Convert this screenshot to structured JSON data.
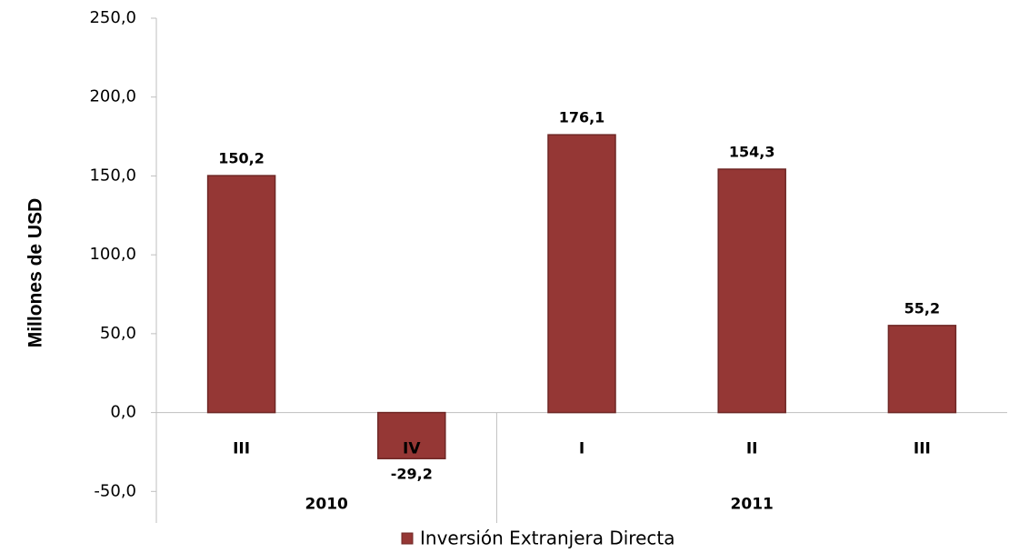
{
  "chart_data": {
    "type": "bar",
    "y_label": "Millones de USD",
    "categories": [
      "III",
      "IV",
      "I",
      "II",
      "III"
    ],
    "groups": [
      {
        "name": "2010",
        "size": 2
      },
      {
        "name": "2011",
        "size": 3
      }
    ],
    "series": [
      {
        "name": "Inversión Extranjera Directa",
        "color": "#953735",
        "values": [
          150.2,
          -29.2,
          176.1,
          154.3,
          55.2
        ],
        "value_labels": [
          "150,2",
          "-29,2",
          "176,1",
          "154,3",
          "55,2"
        ]
      }
    ],
    "ylim": [
      -70,
      250
    ],
    "yticks": [
      {
        "value": -50,
        "label": "-50,0"
      },
      {
        "value": 0,
        "label": "0,0"
      },
      {
        "value": 50,
        "label": "50,0"
      },
      {
        "value": 100,
        "label": "100,0"
      },
      {
        "value": 150,
        "label": "150,0"
      },
      {
        "value": 200,
        "label": "200,0"
      },
      {
        "value": 250,
        "label": "250,0"
      }
    ],
    "grid": false,
    "legend": "bottom"
  }
}
